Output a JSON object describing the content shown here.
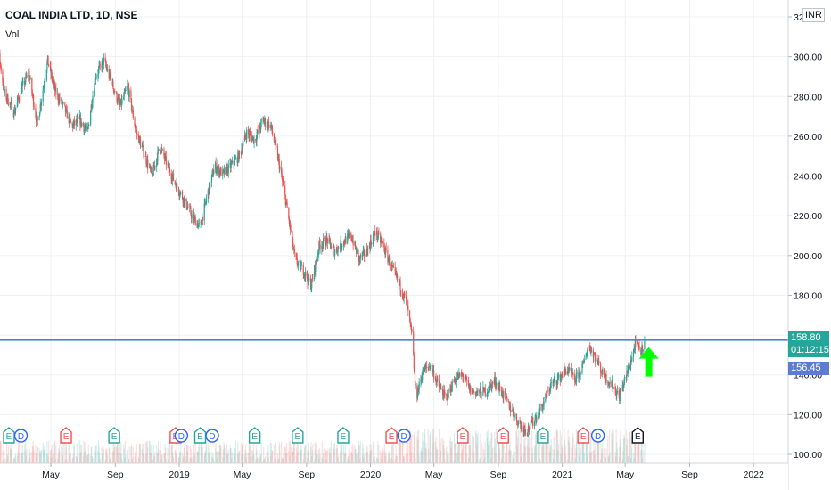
{
  "header": {
    "symbol_title": "COAL INDIA LTD, 1D, NSE",
    "indicator_label": "Vol",
    "currency": "INR"
  },
  "price_tags": {
    "last_price": "158.80",
    "countdown": "01:12:15",
    "previous_price": "156.45"
  },
  "colors": {
    "up": "#26a69a",
    "down": "#ef5350",
    "horizontal_line": "#5b7bd5",
    "arrow": "#00ff00",
    "earnings_green": "#26a69a",
    "earnings_red": "#ef5350",
    "dividend_blue": "#2962ff",
    "grid": "#eef0f4"
  },
  "chart_data": {
    "type": "candlestick",
    "title": "COAL INDIA LTD, 1D, NSE",
    "ylabel": "INR",
    "ylim": [
      97,
      322
    ],
    "y_ticks": [
      100,
      120,
      140,
      160,
      180,
      200,
      220,
      240,
      260,
      280,
      300,
      320
    ],
    "x_ticks": [
      "May",
      "Sep",
      "2019",
      "May",
      "Sep",
      "2020",
      "May",
      "Sep",
      "2021",
      "May",
      "Sep",
      "2022"
    ],
    "price_path": [
      [
        "2018-01-01",
        303
      ],
      [
        "2018-01-15",
        315
      ],
      [
        "2018-02-01",
        282
      ],
      [
        "2018-02-20",
        272
      ],
      [
        "2018-03-05",
        283
      ],
      [
        "2018-03-20",
        292
      ],
      [
        "2018-04-05",
        266
      ],
      [
        "2018-04-25",
        298
      ],
      [
        "2018-05-10",
        282
      ],
      [
        "2018-05-25",
        275
      ],
      [
        "2018-06-10",
        265
      ],
      [
        "2018-06-25",
        268
      ],
      [
        "2018-07-10",
        262
      ],
      [
        "2018-07-25",
        290
      ],
      [
        "2018-08-10",
        298
      ],
      [
        "2018-08-25",
        287
      ],
      [
        "2018-09-10",
        275
      ],
      [
        "2018-09-25",
        285
      ],
      [
        "2018-10-10",
        263
      ],
      [
        "2018-10-25",
        252
      ],
      [
        "2018-11-10",
        240
      ],
      [
        "2018-11-25",
        255
      ],
      [
        "2018-12-10",
        245
      ],
      [
        "2018-12-25",
        236
      ],
      [
        "2019-01-10",
        228
      ],
      [
        "2019-01-25",
        220
      ],
      [
        "2019-02-10",
        214
      ],
      [
        "2019-02-25",
        232
      ],
      [
        "2019-03-10",
        245
      ],
      [
        "2019-03-25",
        241
      ],
      [
        "2019-04-10",
        245
      ],
      [
        "2019-04-25",
        250
      ],
      [
        "2019-05-10",
        262
      ],
      [
        "2019-05-25",
        258
      ],
      [
        "2019-06-10",
        268
      ],
      [
        "2019-06-25",
        265
      ],
      [
        "2019-07-10",
        247
      ],
      [
        "2019-07-25",
        225
      ],
      [
        "2019-08-10",
        198
      ],
      [
        "2019-08-25",
        193
      ],
      [
        "2019-09-10",
        185
      ],
      [
        "2019-09-25",
        205
      ],
      [
        "2019-10-10",
        208
      ],
      [
        "2019-10-25",
        202
      ],
      [
        "2019-11-10",
        207
      ],
      [
        "2019-11-25",
        210
      ],
      [
        "2019-12-10",
        198
      ],
      [
        "2019-12-25",
        202
      ],
      [
        "2020-01-10",
        212
      ],
      [
        "2020-01-25",
        205
      ],
      [
        "2020-02-10",
        194
      ],
      [
        "2020-02-25",
        186
      ],
      [
        "2020-03-10",
        176
      ],
      [
        "2020-03-20",
        160
      ],
      [
        "2020-03-28",
        128
      ],
      [
        "2020-04-10",
        142
      ],
      [
        "2020-04-25",
        145
      ],
      [
        "2020-05-10",
        134
      ],
      [
        "2020-05-25",
        128
      ],
      [
        "2020-06-10",
        138
      ],
      [
        "2020-06-25",
        140
      ],
      [
        "2020-07-10",
        132
      ],
      [
        "2020-07-25",
        131
      ],
      [
        "2020-08-10",
        132
      ],
      [
        "2020-08-25",
        137
      ],
      [
        "2020-09-10",
        130
      ],
      [
        "2020-09-25",
        123
      ],
      [
        "2020-10-10",
        116
      ],
      [
        "2020-10-25",
        112
      ],
      [
        "2020-11-10",
        118
      ],
      [
        "2020-11-25",
        125
      ],
      [
        "2020-12-10",
        135
      ],
      [
        "2020-12-25",
        138
      ],
      [
        "2021-01-10",
        143
      ],
      [
        "2021-01-25",
        137
      ],
      [
        "2021-02-10",
        145
      ],
      [
        "2021-02-20",
        155
      ],
      [
        "2021-03-05",
        149
      ],
      [
        "2021-03-20",
        140
      ],
      [
        "2021-04-05",
        135
      ],
      [
        "2021-04-20",
        129
      ],
      [
        "2021-05-01",
        138
      ],
      [
        "2021-05-10",
        145
      ],
      [
        "2021-05-20",
        155
      ],
      [
        "2021-06-01",
        152
      ],
      [
        "2021-06-08",
        158.8
      ]
    ]
  },
  "earnings_markers": [
    {
      "date": "2018-02-10",
      "type": "E",
      "color": "green"
    },
    {
      "date": "2018-03-05",
      "type": "D",
      "color": "blue"
    },
    {
      "date": "2018-05-30",
      "type": "E",
      "color": "red"
    },
    {
      "date": "2018-08-30",
      "type": "E",
      "color": "green"
    },
    {
      "date": "2018-12-25",
      "type": "E",
      "color": "red"
    },
    {
      "date": "2019-01-05",
      "type": "D",
      "color": "blue"
    },
    {
      "date": "2019-02-10",
      "type": "E",
      "color": "green"
    },
    {
      "date": "2019-03-05",
      "type": "D",
      "color": "blue"
    },
    {
      "date": "2019-05-25",
      "type": "E",
      "color": "green"
    },
    {
      "date": "2019-08-15",
      "type": "E",
      "color": "green"
    },
    {
      "date": "2019-11-10",
      "type": "E",
      "color": "green"
    },
    {
      "date": "2020-02-10",
      "type": "E",
      "color": "red"
    },
    {
      "date": "2020-03-05",
      "type": "D",
      "color": "blue"
    },
    {
      "date": "2020-06-25",
      "type": "E",
      "color": "red"
    },
    {
      "date": "2020-09-10",
      "type": "E",
      "color": "red"
    },
    {
      "date": "2020-11-25",
      "type": "E",
      "color": "green"
    },
    {
      "date": "2021-02-10",
      "type": "E",
      "color": "red"
    },
    {
      "date": "2021-03-10",
      "type": "D",
      "color": "blue"
    },
    {
      "date": "2021-05-25",
      "type": "E",
      "color": "gray"
    }
  ],
  "horizontal_line_level": 157.5,
  "arrow_signal": {
    "date": "2021-06-15",
    "direction": "up"
  }
}
